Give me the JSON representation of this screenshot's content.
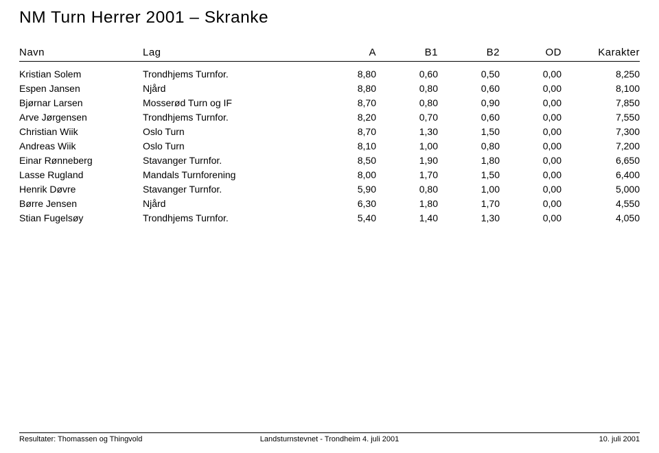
{
  "page": {
    "title": "NM Turn Herrer 2001 – Skranke"
  },
  "table": {
    "headers": {
      "navn": "Navn",
      "lag": "Lag",
      "a": "A",
      "b1": "B1",
      "b2": "B2",
      "od": "OD",
      "karakter": "Karakter"
    },
    "rows": [
      {
        "navn": "Kristian Solem",
        "lag": "Trondhjems Turnfor.",
        "a": "8,80",
        "b1": "0,60",
        "b2": "0,50",
        "od": "0,00",
        "kar": "8,250"
      },
      {
        "navn": "Espen Jansen",
        "lag": "Njård",
        "a": "8,80",
        "b1": "0,80",
        "b2": "0,60",
        "od": "0,00",
        "kar": "8,100"
      },
      {
        "navn": "Bjørnar Larsen",
        "lag": "Mosserød Turn og IF",
        "a": "8,70",
        "b1": "0,80",
        "b2": "0,90",
        "od": "0,00",
        "kar": "7,850"
      },
      {
        "navn": "Arve Jørgensen",
        "lag": "Trondhjems Turnfor.",
        "a": "8,20",
        "b1": "0,70",
        "b2": "0,60",
        "od": "0,00",
        "kar": "7,550"
      },
      {
        "navn": "Christian Wiik",
        "lag": "Oslo Turn",
        "a": "8,70",
        "b1": "1,30",
        "b2": "1,50",
        "od": "0,00",
        "kar": "7,300"
      },
      {
        "navn": "Andreas Wiik",
        "lag": "Oslo Turn",
        "a": "8,10",
        "b1": "1,00",
        "b2": "0,80",
        "od": "0,00",
        "kar": "7,200"
      },
      {
        "navn": "Einar Rønneberg",
        "lag": "Stavanger Turnfor.",
        "a": "8,50",
        "b1": "1,90",
        "b2": "1,80",
        "od": "0,00",
        "kar": "6,650"
      },
      {
        "navn": "Lasse Rugland",
        "lag": "Mandals Turnforening",
        "a": "8,00",
        "b1": "1,70",
        "b2": "1,50",
        "od": "0,00",
        "kar": "6,400"
      },
      {
        "navn": "Henrik Døvre",
        "lag": "Stavanger Turnfor.",
        "a": "5,90",
        "b1": "0,80",
        "b2": "1,00",
        "od": "0,00",
        "kar": "5,000"
      },
      {
        "navn": "Børre Jensen",
        "lag": "Njård",
        "a": "6,30",
        "b1": "1,80",
        "b2": "1,70",
        "od": "0,00",
        "kar": "4,550"
      },
      {
        "navn": "Stian Fugelsøy",
        "lag": "Trondhjems Turnfor.",
        "a": "5,40",
        "b1": "1,40",
        "b2": "1,30",
        "od": "0,00",
        "kar": "4,050"
      }
    ]
  },
  "footer": {
    "left": "Resultater: Thomassen og Thingvold",
    "center": "Landsturnstevnet - Trondheim 4. juli 2001",
    "right": "10. juli 2001"
  }
}
